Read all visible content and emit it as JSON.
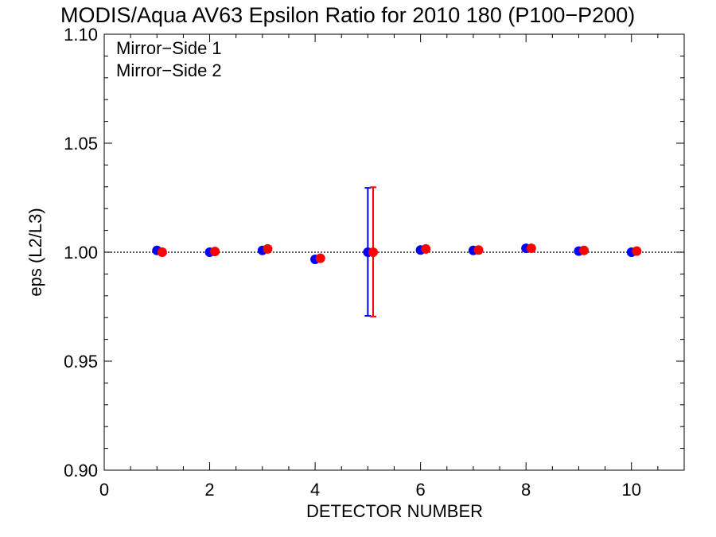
{
  "chart_data": {
    "type": "scatter",
    "title": "MODIS/Aqua AV63 Epsilon Ratio for 2010 180 (P100−P200)",
    "xlabel": "DETECTOR NUMBER",
    "ylabel": "eps (L2/L3)",
    "xlim": [
      0,
      11
    ],
    "ylim": [
      0.9,
      1.1
    ],
    "x_ticks": [
      0,
      2,
      4,
      6,
      8,
      10
    ],
    "x_tick_labels": [
      "0",
      "2",
      "4",
      "6",
      "8",
      "10"
    ],
    "y_ticks": [
      0.9,
      0.95,
      1.0,
      1.05,
      1.1
    ],
    "y_tick_labels": [
      "0.90",
      "0.95",
      "1.00",
      "1.05",
      "1.10"
    ],
    "reference_line": 1.0,
    "legend_position": "top-left",
    "series": [
      {
        "name": "Mirror−Side 1",
        "color": "#0000ff",
        "x": [
          1,
          2,
          3,
          4,
          5,
          6,
          7,
          8,
          9,
          10
        ],
        "y": [
          1.0008,
          1.0,
          1.0008,
          0.9967,
          1.0,
          1.001,
          1.0008,
          1.0018,
          1.0005,
          1.0
        ],
        "error_bars": [
          {
            "x": 5,
            "low": 0.9708,
            "high": 1.0295
          }
        ]
      },
      {
        "name": "Mirror−Side 2",
        "color": "#ff0000",
        "x": [
          1.1,
          2.1,
          3.1,
          4.1,
          5.1,
          6.1,
          7.1,
          8.1,
          9.1,
          10.1
        ],
        "y": [
          1.0,
          1.0003,
          1.0015,
          0.9972,
          1.0,
          1.0015,
          1.001,
          1.0018,
          1.0008,
          1.0005
        ],
        "error_bars": [
          {
            "x": 5.1,
            "low": 0.9705,
            "high": 1.0298
          }
        ]
      }
    ]
  }
}
